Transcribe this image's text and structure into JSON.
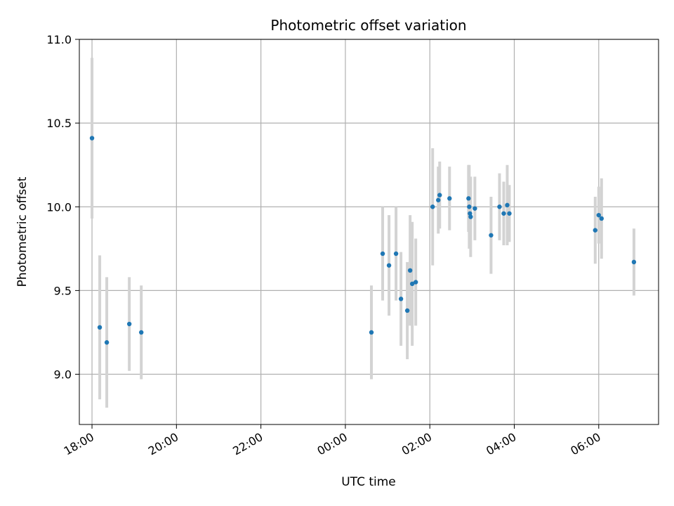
{
  "chart_data": {
    "type": "scatter",
    "title": "Photometric offset variation",
    "xlabel": "UTC time",
    "ylabel": "Photometric offset",
    "x_axis_type": "time",
    "xlim": [
      "17:42",
      "07:25"
    ],
    "ylim": [
      8.7,
      11.0
    ],
    "x_ticks": [
      "18:00",
      "20:00",
      "22:00",
      "00:00",
      "02:00",
      "04:00",
      "06:00"
    ],
    "y_ticks": [
      9.0,
      9.5,
      10.0,
      10.5,
      11.0
    ],
    "y_tick_labels": [
      "9.0",
      "9.5",
      "10.0",
      "10.5",
      "11.0"
    ],
    "grid": true,
    "colors": {
      "point": "#1f77b4",
      "errorbar": "#d3d3d3",
      "grid": "#b0b0b0"
    },
    "series": [
      {
        "points": [
          {
            "x": "18:00",
            "y": 10.41,
            "yerr": 0.48
          },
          {
            "x": "18:11",
            "y": 9.28,
            "yerr": 0.43
          },
          {
            "x": "18:21",
            "y": 9.19,
            "yerr": 0.39
          },
          {
            "x": "18:53",
            "y": 9.3,
            "yerr": 0.28
          },
          {
            "x": "19:10",
            "y": 9.25,
            "yerr": 0.28
          },
          {
            "x": "00:37",
            "y": 9.25,
            "yerr": 0.28
          },
          {
            "x": "00:53",
            "y": 9.72,
            "yerr": 0.28
          },
          {
            "x": "01:02",
            "y": 9.65,
            "yerr": 0.3
          },
          {
            "x": "01:12",
            "y": 9.72,
            "yerr": 0.28
          },
          {
            "x": "01:19",
            "y": 9.45,
            "yerr": 0.28
          },
          {
            "x": "01:28",
            "y": 9.38,
            "yerr": 0.29
          },
          {
            "x": "01:32",
            "y": 9.62,
            "yerr": 0.33
          },
          {
            "x": "01:35",
            "y": 9.54,
            "yerr": 0.37
          },
          {
            "x": "01:40",
            "y": 9.55,
            "yerr": 0.26
          },
          {
            "x": "02:04",
            "y": 10.0,
            "yerr": 0.35
          },
          {
            "x": "02:12",
            "y": 10.04,
            "yerr": 0.2
          },
          {
            "x": "02:14",
            "y": 10.07,
            "yerr": 0.2
          },
          {
            "x": "02:28",
            "y": 10.05,
            "yerr": 0.19
          },
          {
            "x": "02:55",
            "y": 10.05,
            "yerr": 0.2
          },
          {
            "x": "02:56",
            "y": 10.0,
            "yerr": 0.25
          },
          {
            "x": "02:57",
            "y": 9.96,
            "yerr": 0.2
          },
          {
            "x": "02:58",
            "y": 9.94,
            "yerr": 0.24
          },
          {
            "x": "03:04",
            "y": 9.99,
            "yerr": 0.19
          },
          {
            "x": "03:27",
            "y": 9.83,
            "yerr": 0.23
          },
          {
            "x": "03:39",
            "y": 10.0,
            "yerr": 0.2
          },
          {
            "x": "03:45",
            "y": 9.96,
            "yerr": 0.19
          },
          {
            "x": "03:50",
            "y": 10.01,
            "yerr": 0.24
          },
          {
            "x": "03:53",
            "y": 9.96,
            "yerr": 0.17
          },
          {
            "x": "05:55",
            "y": 9.86,
            "yerr": 0.2
          },
          {
            "x": "06:00",
            "y": 9.95,
            "yerr": 0.17
          },
          {
            "x": "06:04",
            "y": 9.93,
            "yerr": 0.24
          },
          {
            "x": "06:50",
            "y": 9.67,
            "yerr": 0.2
          }
        ]
      }
    ]
  }
}
